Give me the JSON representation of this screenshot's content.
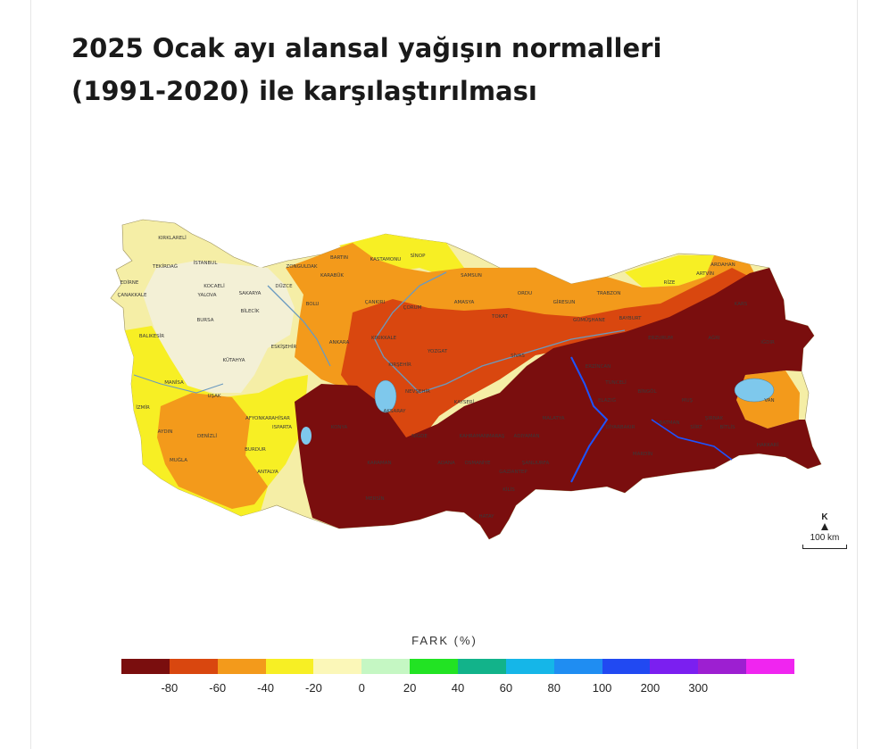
{
  "title": {
    "line1": "2025 Ocak ayı alansal yağışın normalleri",
    "line2": "(1991-2020) ile karşılaştırılması"
  },
  "legend": {
    "title": "FARK (%)",
    "colors": [
      "#7a0e0e",
      "#d9470f",
      "#f39a1b",
      "#f7ef24",
      "#fbf7b8",
      "#c5f7c3",
      "#22e323",
      "#12b38a",
      "#15b6e8",
      "#1f8df2",
      "#2149f2",
      "#7b1ff0",
      "#9d1fd1",
      "#f025f0"
    ],
    "ticks": [
      "-80",
      "-60",
      "-40",
      "-20",
      "0",
      "20",
      "40",
      "60",
      "80",
      "100",
      "200",
      "300"
    ]
  },
  "map_labels": [
    "KIRKLARELİ",
    "EDİRNE",
    "TEKİRDAĞ",
    "İSTANBUL",
    "ÇANAKKALE",
    "KOCAELİ",
    "YALOVA",
    "SAKARYA",
    "DÜZCE",
    "ZONGULDAK",
    "KARABÜK",
    "BARTIN",
    "KASTAMONU",
    "SİNOP",
    "SAMSUN",
    "BOLU",
    "ÇANKIRI",
    "ÇORUM",
    "AMASYA",
    "TOKAT",
    "ORDU",
    "GİRESUN",
    "TRABZON",
    "RİZE",
    "ARTVİN",
    "ARDAHAN",
    "KARS",
    "GÜMÜŞHANE",
    "BAYBURT",
    "ERZURUM",
    "AĞRI",
    "IĞDIR",
    "VAN",
    "BİTLİS",
    "MUŞ",
    "BİNGÖL",
    "TUNCELİ",
    "ERZİNCAN",
    "SİVAS",
    "YOZGAT",
    "KIRIKKALE",
    "ANKARA",
    "KIRŞEHİR",
    "NEVŞEHİR",
    "KAYSERİ",
    "AKSARAY",
    "NİĞDE",
    "KONYA",
    "KARAMAN",
    "MERSİN",
    "ADANA",
    "OSMANİYE",
    "HATAY",
    "GAZİANTEP",
    "KİLİS",
    "ŞANLIURFA",
    "ADIYAMAN",
    "MALATYA",
    "ELAZIĞ",
    "DİYARBAKIR",
    "BATMAN",
    "SİİRT",
    "ŞIRNAK",
    "HAKKARİ",
    "MARDİN",
    "KAHRAMANMARAŞ",
    "BURSA",
    "BİLECİK",
    "BALIKESİR",
    "ESKİŞEHİR",
    "KÜTAHYA",
    "MANİSA",
    "İZMİR",
    "UŞAK",
    "AFYONKARAHİSAR",
    "AYDIN",
    "DENİZLİ",
    "MUĞLA",
    "BURDUR",
    "ISPARTA",
    "ANTALYA"
  ],
  "scale_bar": {
    "north": "K",
    "distance": "100 km"
  }
}
